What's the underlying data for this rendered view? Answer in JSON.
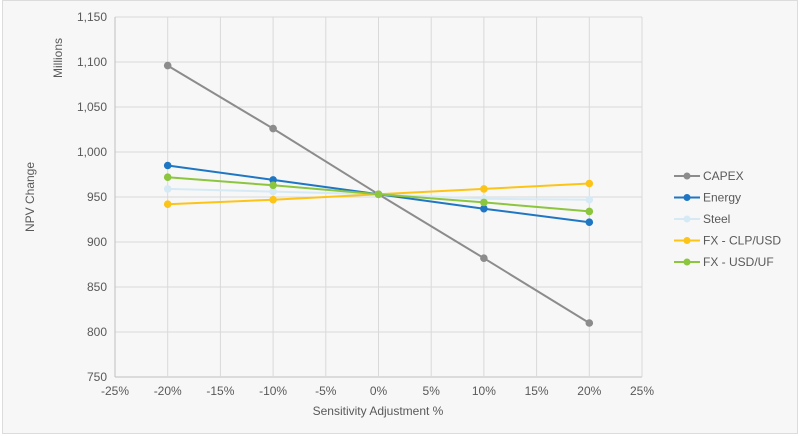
{
  "chart_data": {
    "type": "line",
    "title": "",
    "xlabel": "Sensitivity Adjustment  %",
    "ylabel": "NPV Change",
    "yunit_label": "Millions",
    "xlim": [
      -25,
      25
    ],
    "ylim": [
      750,
      1150
    ],
    "xticks": [
      -25,
      -20,
      -15,
      -10,
      -5,
      0,
      5,
      10,
      15,
      20,
      25
    ],
    "xtick_labels": [
      "-25%",
      "-20%",
      "-15%",
      "-10%",
      "-5%",
      "0%",
      "5%",
      "10%",
      "15%",
      "20%",
      "25%"
    ],
    "yticks": [
      750,
      800,
      850,
      900,
      950,
      1000,
      1050,
      1100,
      1150
    ],
    "ytick_labels": [
      "750",
      "800",
      "850",
      "900",
      "950",
      "1,000",
      "1,050",
      "1,100",
      "1,150"
    ],
    "grid": true,
    "legend_position": "right",
    "x": [
      -20,
      -10,
      0,
      10,
      20
    ],
    "series": [
      {
        "name": "CAPEX",
        "color": "#8c8c8c",
        "values": [
          1096,
          1026,
          953,
          882,
          810
        ]
      },
      {
        "name": "Energy",
        "color": "#1f77c4",
        "values": [
          985,
          969,
          953,
          937,
          922
        ]
      },
      {
        "name": "Steel",
        "color": "#d6eaf5",
        "values": [
          959,
          956,
          953,
          948,
          947
        ]
      },
      {
        "name": "FX - CLP/USD",
        "color": "#fcc419",
        "values": [
          942,
          947,
          953,
          959,
          965
        ]
      },
      {
        "name": "FX - USD/UF",
        "color": "#8cc63f",
        "values": [
          972,
          963,
          953,
          944,
          934
        ]
      }
    ]
  }
}
